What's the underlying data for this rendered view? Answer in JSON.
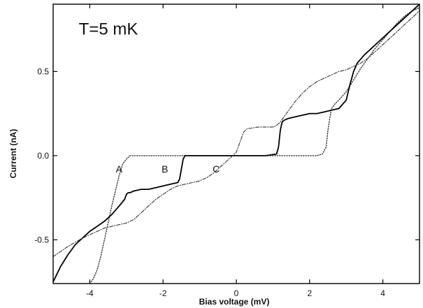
{
  "chart_data": {
    "type": "line",
    "title": "",
    "xlabel": "Bias voltage   (mV)",
    "ylabel": "Current  (nA)",
    "xlim": [
      -5,
      5
    ],
    "ylim": [
      -0.76,
      0.9
    ],
    "x_ticks": [
      {
        "value": -4,
        "label": "-4"
      },
      {
        "value": -2,
        "label": "-2"
      },
      {
        "value": 0,
        "label": "0"
      },
      {
        "value": 2,
        "label": "2"
      },
      {
        "value": 4,
        "label": "4"
      }
    ],
    "y_ticks": [
      {
        "value": 0.5,
        "label": "0.5"
      },
      {
        "value": 0.0,
        "label": "0.0"
      },
      {
        "value": -0.5,
        "label": "-0.5"
      }
    ],
    "grid": false,
    "annotations": [
      {
        "text": "T=5 mK",
        "x": -4.3,
        "y": 0.72
      },
      {
        "text": "A",
        "x": -3.2,
        "y": -0.1
      },
      {
        "text": "B",
        "x": -1.95,
        "y": -0.1
      },
      {
        "text": "C",
        "x": -0.55,
        "y": -0.1
      }
    ],
    "series": [
      {
        "label": "A",
        "style": "dotted",
        "color": "#333333",
        "x": [
          -4.0,
          -3.9,
          -3.8,
          -3.7,
          -3.6,
          -3.5,
          -3.4,
          -3.3,
          -3.2,
          -3.1,
          -3.0,
          -2.9,
          -2.7,
          1.5,
          2.0,
          2.2,
          2.35,
          2.45,
          2.5,
          2.55,
          2.6,
          2.7,
          2.8,
          3.0,
          3.2,
          3.4,
          3.6,
          3.8,
          4.0,
          4.2,
          4.4,
          4.6,
          4.8,
          5.0
        ],
        "y": [
          -0.76,
          -0.73,
          -0.68,
          -0.6,
          -0.5,
          -0.4,
          -0.3,
          -0.21,
          -0.12,
          -0.05,
          -0.02,
          0.0,
          0.0,
          0.0,
          0.0,
          0.0,
          0.01,
          0.05,
          0.15,
          0.22,
          0.28,
          0.31,
          0.33,
          0.38,
          0.45,
          0.52,
          0.58,
          0.64,
          0.69,
          0.74,
          0.79,
          0.83,
          0.86,
          0.88
        ]
      },
      {
        "label": "B",
        "style": "solid",
        "color": "#000000",
        "x": [
          -5.0,
          -4.8,
          -4.6,
          -4.4,
          -4.2,
          -4.0,
          -3.8,
          -3.6,
          -3.4,
          -3.2,
          -3.05,
          -3.0,
          -2.95,
          -2.9,
          -2.8,
          -2.6,
          -2.4,
          -2.2,
          -2.0,
          -1.8,
          -1.6,
          -1.55,
          -1.5,
          -1.45,
          -1.4,
          -0.8,
          0.0,
          0.8,
          1.1,
          1.15,
          1.2,
          1.25,
          1.3,
          1.4,
          1.6,
          1.8,
          2.0,
          2.2,
          2.4,
          2.6,
          2.8,
          3.0,
          3.1,
          3.2,
          3.3,
          3.5,
          3.7,
          3.9,
          4.1,
          4.3,
          4.5,
          4.7,
          4.9,
          5.0
        ],
        "y": [
          -0.75,
          -0.66,
          -0.59,
          -0.53,
          -0.49,
          -0.45,
          -0.42,
          -0.39,
          -0.35,
          -0.3,
          -0.26,
          -0.23,
          -0.22,
          -0.22,
          -0.21,
          -0.2,
          -0.2,
          -0.19,
          -0.18,
          -0.17,
          -0.16,
          -0.14,
          -0.08,
          -0.02,
          0.0,
          0.0,
          0.0,
          0.0,
          0.01,
          0.05,
          0.15,
          0.2,
          0.21,
          0.22,
          0.23,
          0.24,
          0.25,
          0.25,
          0.26,
          0.27,
          0.28,
          0.33,
          0.42,
          0.5,
          0.55,
          0.6,
          0.64,
          0.68,
          0.72,
          0.76,
          0.8,
          0.84,
          0.88,
          0.9
        ]
      },
      {
        "label": "C",
        "style": "dash-dot",
        "color": "#333333",
        "x": [
          -5.0,
          -4.6,
          -4.2,
          -3.8,
          -3.6,
          -3.4,
          -3.2,
          -3.0,
          -2.8,
          -2.6,
          -2.4,
          -2.2,
          -2.0,
          -1.8,
          -1.6,
          -1.4,
          -1.2,
          -1.0,
          -0.8,
          -0.6,
          -0.4,
          -0.2,
          -0.1,
          0.0,
          0.1,
          0.2,
          0.3,
          0.6,
          0.9,
          1.0,
          1.1,
          1.2,
          1.4,
          1.6,
          1.8,
          2.0,
          2.2,
          2.4,
          2.6,
          2.8,
          3.0,
          3.2,
          3.4,
          3.6,
          3.8,
          4.0,
          4.2,
          4.4,
          4.6,
          4.8,
          5.0
        ],
        "y": [
          -0.6,
          -0.54,
          -0.49,
          -0.45,
          -0.43,
          -0.42,
          -0.41,
          -0.4,
          -0.38,
          -0.34,
          -0.3,
          -0.26,
          -0.23,
          -0.2,
          -0.18,
          -0.17,
          -0.16,
          -0.15,
          -0.13,
          -0.1,
          -0.06,
          -0.02,
          0.0,
          0.02,
          0.08,
          0.14,
          0.16,
          0.17,
          0.17,
          0.17,
          0.18,
          0.2,
          0.26,
          0.32,
          0.37,
          0.41,
          0.44,
          0.46,
          0.48,
          0.5,
          0.51,
          0.53,
          0.55,
          0.58,
          0.62,
          0.66,
          0.7,
          0.74,
          0.78,
          0.82,
          0.86
        ]
      }
    ]
  }
}
